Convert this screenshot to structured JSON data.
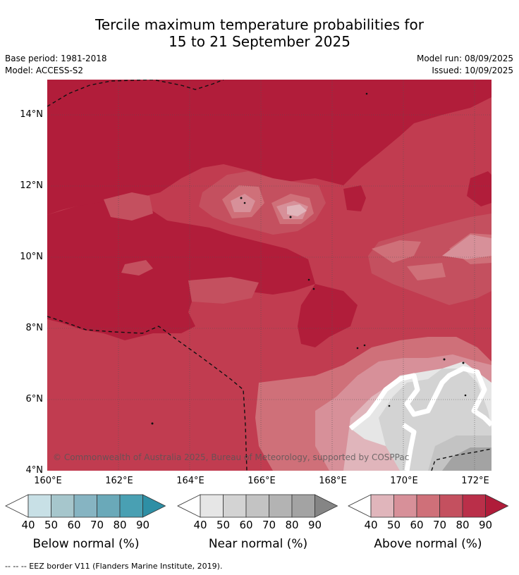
{
  "title_line1": "Tercile maximum temperature probabilities for",
  "title_line2": "15 to 21 September 2025",
  "base_period": "Base period: 1981-2018",
  "model": "Model: ACCESS-S2",
  "model_run": "Model run: 08/09/2025",
  "issued": "Issued: 10/09/2025",
  "x_ticks": [
    "160°E",
    "162°E",
    "164°E",
    "166°E",
    "168°E",
    "170°E",
    "172°E"
  ],
  "y_ticks": [
    "14°N",
    "12°N",
    "10°N",
    "8°N",
    "6°N",
    "4°N"
  ],
  "copyright": "© Commonwealth of Australia 2025, Bureau of Meteorology, supported by COSPPac",
  "colorbars": [
    {
      "label": "Below normal (%)",
      "ticks": [
        "40",
        "50",
        "60",
        "70",
        "80",
        "90"
      ],
      "colors": [
        "#ffffff",
        "#c8e0e6",
        "#a6c6cc",
        "#86b4c2",
        "#6aa9b9",
        "#49a0b3",
        "#2e8fa5"
      ]
    },
    {
      "label": "Near normal (%)",
      "ticks": [
        "40",
        "50",
        "60",
        "70",
        "80",
        "90"
      ],
      "colors": [
        "#ffffff",
        "#e6e6e6",
        "#d3d3d3",
        "#c3c3c3",
        "#b3b3b3",
        "#a3a3a3",
        "#858585"
      ]
    },
    {
      "label": "Above normal (%)",
      "ticks": [
        "40",
        "50",
        "60",
        "70",
        "80",
        "90"
      ],
      "colors": [
        "#ffffff",
        "#e0b5bb",
        "#d79099",
        "#cf7079",
        "#c4505f",
        "#ba2f49",
        "#b01c3a"
      ]
    }
  ],
  "footnote": "--  --  -- EEZ border V11 (Flanders Marine Institute, 2019)."
}
